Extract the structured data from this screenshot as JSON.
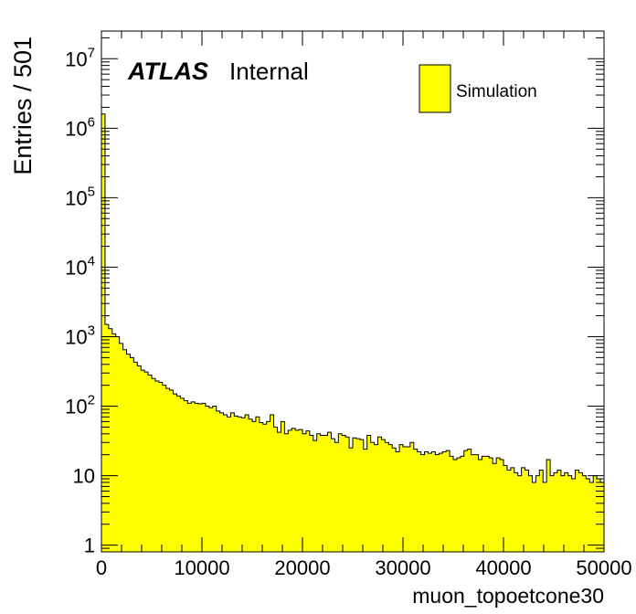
{
  "chart_data": {
    "type": "bar",
    "style": "histogram",
    "experiment": "ATLAS",
    "label": "Internal",
    "xlabel": "muon_topoetcone30",
    "ylabel": "Entries / 501",
    "x_range": [
      0,
      50000
    ],
    "y_scale": "log",
    "y_range": [
      0.8,
      25000000
    ],
    "bin_width": 501,
    "x_ticks": [
      0,
      10000,
      20000,
      30000,
      40000,
      50000
    ],
    "x_tick_labels": [
      "0",
      "10000",
      "20000",
      "30000",
      "40000",
      "50000"
    ],
    "y_tick_labels": [
      {
        "value": 1,
        "base": "1",
        "exp": ""
      },
      {
        "value": 10,
        "base": "10",
        "exp": ""
      },
      {
        "value": 100,
        "base": "10",
        "exp": "2"
      },
      {
        "value": 1000,
        "base": "10",
        "exp": "3"
      },
      {
        "value": 10000,
        "base": "10",
        "exp": "4"
      },
      {
        "value": 100000,
        "base": "10",
        "exp": "5"
      },
      {
        "value": 1000000,
        "base": "10",
        "exp": "6"
      },
      {
        "value": 10000000,
        "base": "10",
        "exp": "7"
      }
    ],
    "legend": {
      "entries": [
        {
          "name": "Simulation",
          "color": "#ffff00"
        }
      ],
      "position": "top-right"
    },
    "fill_color": "#ffff00",
    "line_color": "#000000",
    "values": [
      1600000,
      1500,
      1300,
      1100,
      1000,
      800,
      650,
      560,
      500,
      430,
      380,
      330,
      310,
      280,
      250,
      230,
      220,
      200,
      180,
      170,
      150,
      140,
      130,
      120,
      110,
      115,
      110,
      108,
      110,
      100,
      95,
      100,
      85,
      80,
      75,
      70,
      80,
      72,
      70,
      68,
      75,
      65,
      60,
      70,
      58,
      55,
      60,
      75,
      50,
      42,
      60,
      40,
      45,
      48,
      45,
      46,
      40,
      44,
      38,
      32,
      40,
      38,
      38,
      42,
      34,
      30,
      40,
      38,
      36,
      25,
      35,
      34,
      33,
      24,
      38,
      30,
      28,
      36,
      33,
      30,
      28,
      25,
      22,
      28,
      26,
      26,
      30,
      24,
      22,
      20,
      22,
      21,
      22,
      20,
      21,
      22,
      23,
      19,
      17,
      18,
      19,
      23,
      24,
      20,
      20,
      17,
      19,
      19,
      18,
      15,
      18,
      17,
      14,
      12,
      13,
      11,
      10,
      13,
      12,
      10,
      8,
      10,
      12,
      8,
      17,
      10,
      11,
      12,
      10,
      11,
      10,
      9,
      12,
      11,
      10,
      9,
      8,
      10,
      9,
      8
    ]
  }
}
